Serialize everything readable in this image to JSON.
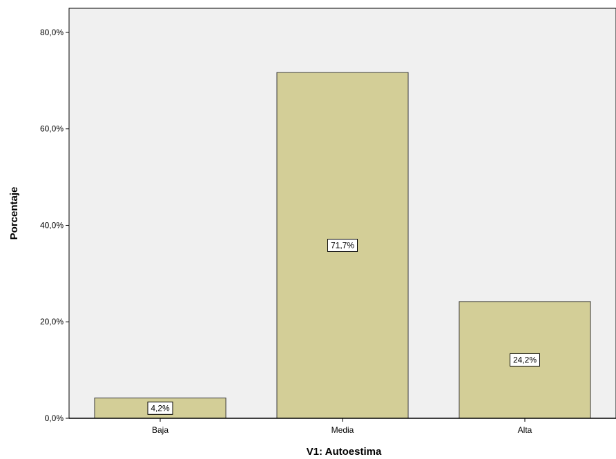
{
  "chart_data": {
    "type": "bar",
    "title": "",
    "xlabel": "V1: Autoestima",
    "ylabel": "Porcentaje",
    "categories": [
      "Baja",
      "Media",
      "Alta"
    ],
    "values": [
      4.2,
      71.7,
      24.2
    ],
    "data_labels": [
      "4,2%",
      "71,7%",
      "24,2%"
    ],
    "ylim": [
      0,
      85
    ],
    "yticks": [
      0,
      20,
      40,
      60,
      80
    ],
    "ytick_labels": [
      "0,0%",
      "20,0%",
      "40,0%",
      "60,0%",
      "80,0%"
    ],
    "grid": false,
    "colors": {
      "bar_fill": "#d3ce97",
      "bar_stroke": "#3c3c3c",
      "plot_background": "#f0f0f0",
      "page_background": "#ffffff"
    }
  }
}
